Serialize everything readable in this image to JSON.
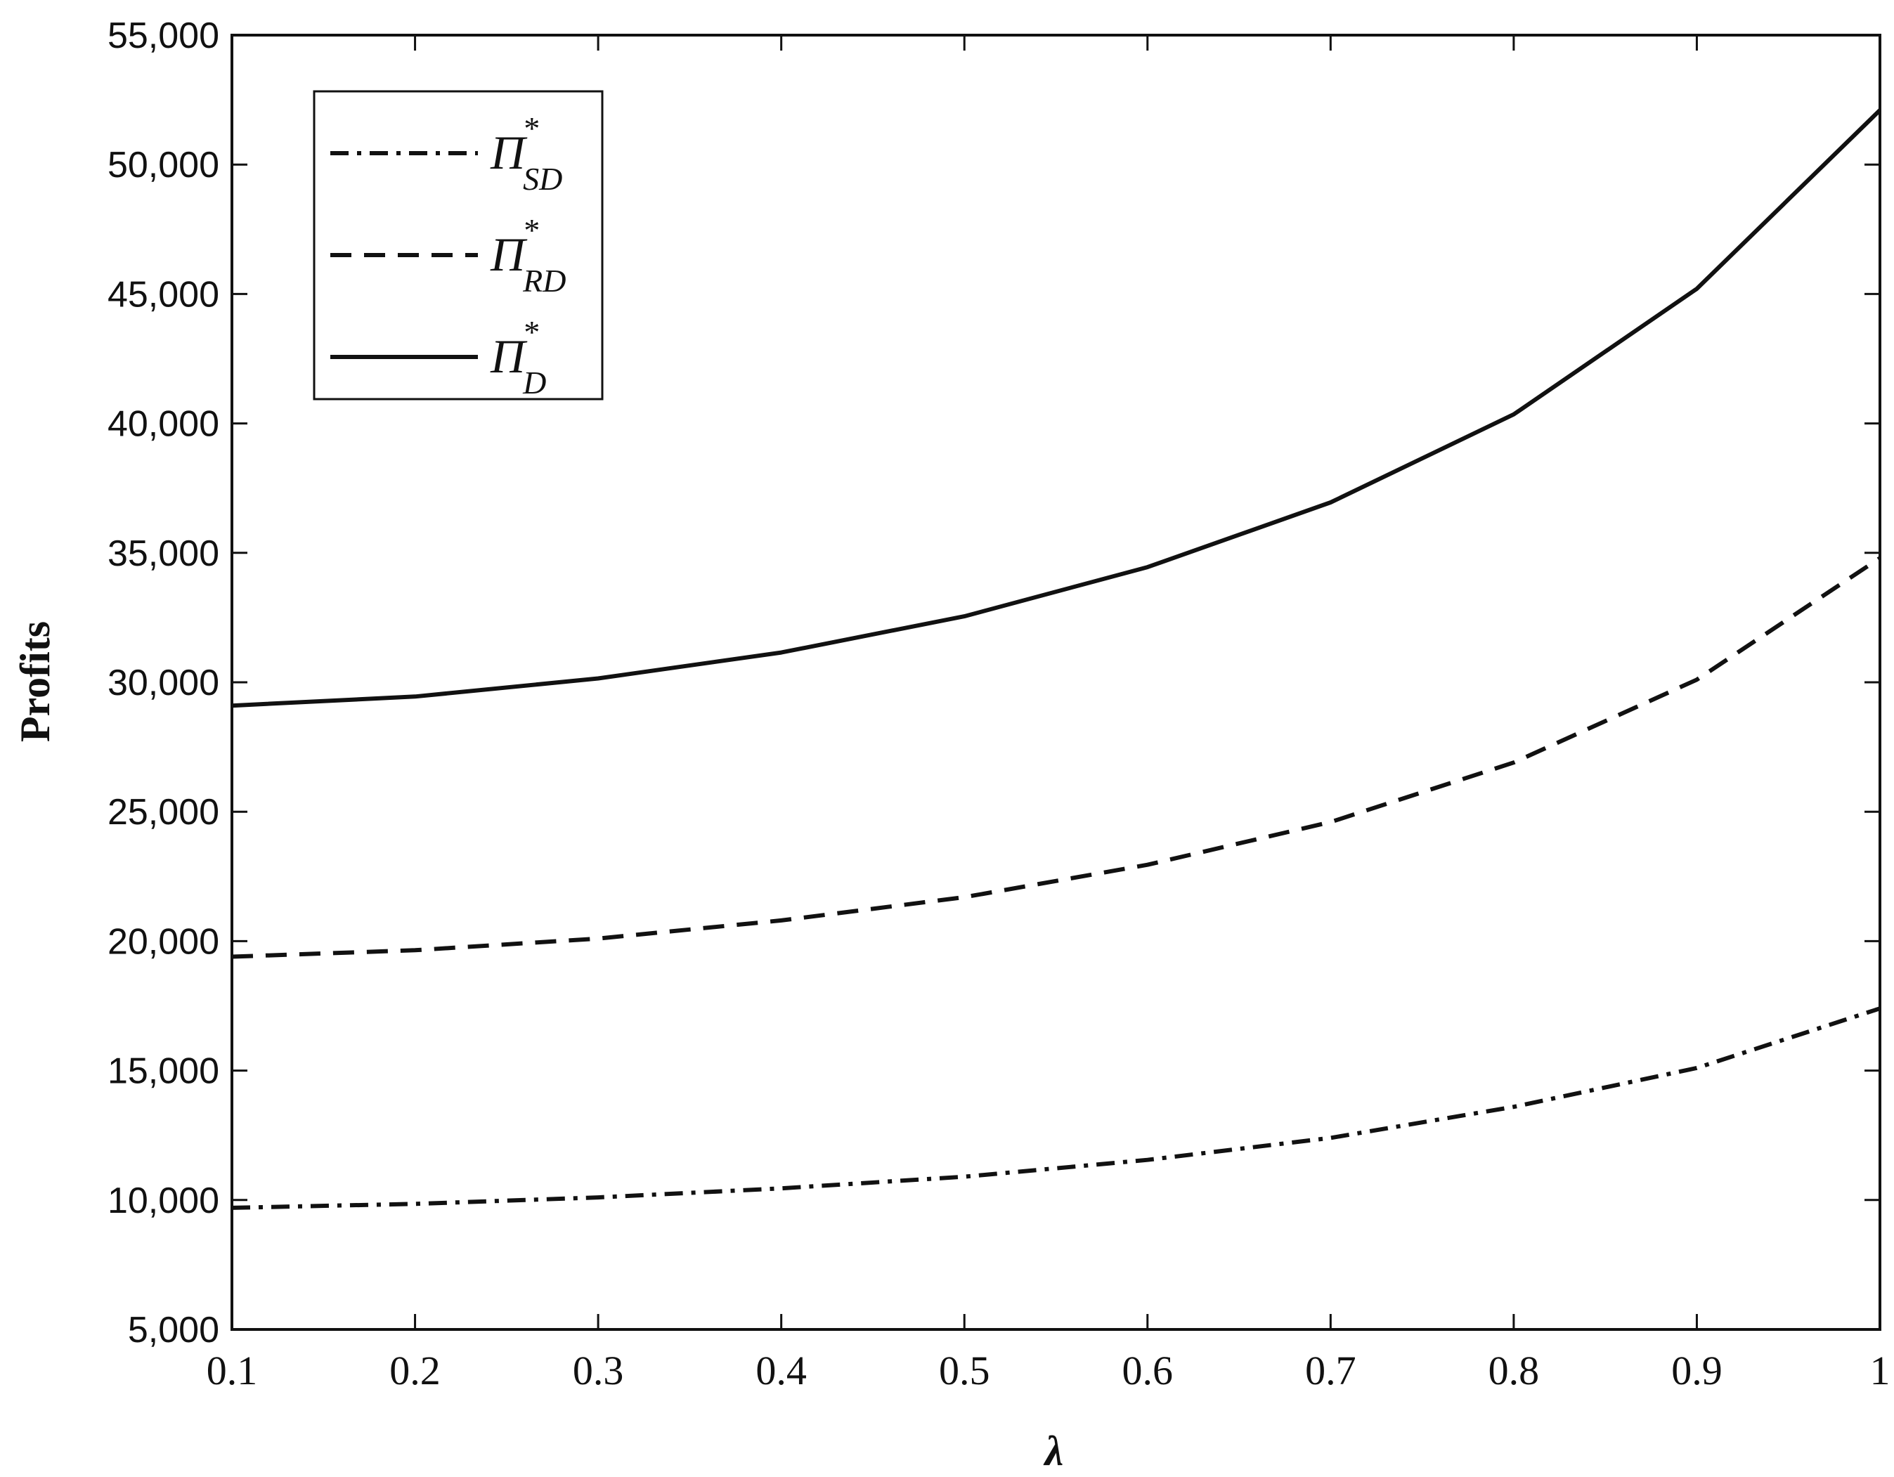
{
  "chart_data": {
    "type": "line",
    "title": "",
    "xlabel": "λ",
    "ylabel": "Profits",
    "x": [
      0.1,
      0.2,
      0.3,
      0.4,
      0.5,
      0.6,
      0.7,
      0.8,
      0.9,
      1.0
    ],
    "x_tick_labels": [
      "0.1",
      "0.2",
      "0.3",
      "0.4",
      "0.5",
      "0.6",
      "0.7",
      "0.8",
      "0.9",
      "1"
    ],
    "y_ticks": [
      5000,
      10000,
      15000,
      20000,
      25000,
      30000,
      35000,
      40000,
      45000,
      50000,
      55000
    ],
    "y_tick_labels": [
      "5,000",
      "10,000",
      "15,000",
      "20,000",
      "25,000",
      "30,000",
      "35,000",
      "40,000",
      "45,000",
      "50,000",
      "55,000"
    ],
    "xlim": [
      0.1,
      1.0
    ],
    "ylim": [
      5000,
      55000
    ],
    "grid": false,
    "legend_position": "top-left",
    "series": [
      {
        "name": "Π*SD",
        "legend_base": "Π",
        "legend_sup": "*",
        "legend_sub": "SD",
        "line_style": "dash-dot",
        "values": [
          9700,
          9850,
          10100,
          10450,
          10900,
          11550,
          12400,
          13600,
          15100,
          17400
        ]
      },
      {
        "name": "Π*RD",
        "legend_base": "Π",
        "legend_sup": "*",
        "legend_sub": "RD",
        "line_style": "dashed",
        "values": [
          19400,
          19650,
          20100,
          20800,
          21700,
          22950,
          24600,
          26900,
          30100,
          34800
        ]
      },
      {
        "name": "Π*D",
        "legend_base": "Π",
        "legend_sup": "*",
        "legend_sub": "D",
        "line_style": "solid",
        "values": [
          29100,
          29450,
          30150,
          31150,
          32550,
          34450,
          36950,
          40350,
          45200,
          52100
        ]
      }
    ]
  }
}
